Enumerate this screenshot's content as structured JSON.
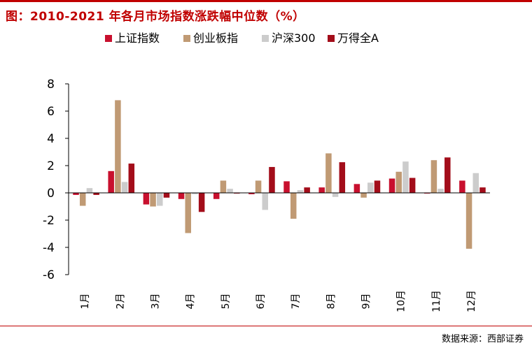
{
  "title": "图：2010-2021 年各月市场指数涨跌幅中位数（%）",
  "source": "数据来源：西部证券",
  "colors": {
    "title": "#c00000",
    "series": [
      "#c8102e",
      "#c09a74",
      "#cccccc",
      "#a30d1a"
    ]
  },
  "chart_data": {
    "type": "bar",
    "categories": [
      "1月",
      "2月",
      "3月",
      "4月",
      "5月",
      "6月",
      "7月",
      "8月",
      "9月",
      "10月",
      "11月",
      "12月"
    ],
    "series": [
      {
        "name": "上证指数",
        "values": [
          -0.15,
          1.6,
          -0.85,
          -0.45,
          -0.45,
          -0.1,
          0.85,
          0.4,
          0.65,
          1.05,
          -0.05,
          0.9
        ]
      },
      {
        "name": "创业板指",
        "values": [
          -0.95,
          6.8,
          -1.0,
          -2.95,
          0.9,
          0.9,
          -1.9,
          2.9,
          -0.35,
          1.55,
          2.4,
          -4.1
        ]
      },
      {
        "name": "沪深300",
        "values": [
          0.35,
          0.8,
          -0.95,
          -0.1,
          0.3,
          -1.25,
          0.2,
          -0.3,
          0.75,
          2.3,
          0.3,
          1.45
        ]
      },
      {
        "name": "万得全A",
        "values": [
          -0.15,
          2.15,
          -0.35,
          -1.4,
          -0.05,
          1.9,
          0.4,
          2.25,
          0.9,
          1.1,
          2.6,
          0.4
        ]
      }
    ],
    "ylim": [
      -6,
      8
    ],
    "yticks": [
      8,
      6,
      4,
      2,
      0,
      -2,
      -4,
      -6
    ],
    "grid": false,
    "legend": "top"
  }
}
